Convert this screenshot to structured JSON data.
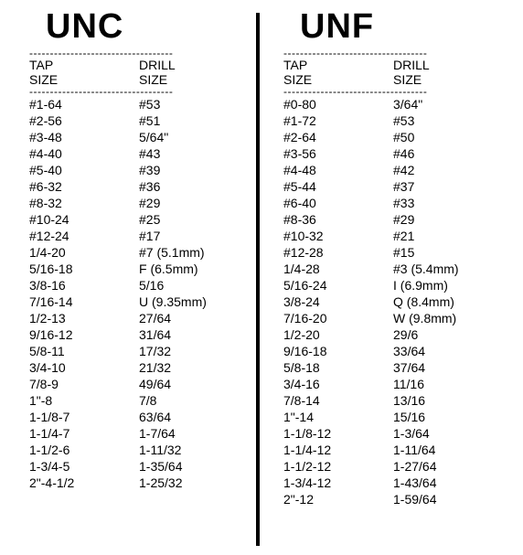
{
  "left": {
    "title": "UNC",
    "dash": "-----------------------------------",
    "header": {
      "tap1": "TAP",
      "tap2": "SIZE",
      "drill1": "DRILL",
      "drill2": "SIZE"
    },
    "rows": [
      {
        "tap": "#1-64",
        "drill": "#53"
      },
      {
        "tap": "#2-56",
        "drill": "#51"
      },
      {
        "tap": "#3-48",
        "drill": "5/64\""
      },
      {
        "tap": "#4-40",
        "drill": "#43"
      },
      {
        "tap": "#5-40",
        "drill": "#39"
      },
      {
        "tap": "#6-32",
        "drill": "#36"
      },
      {
        "tap": "#8-32",
        "drill": "#29"
      },
      {
        "tap": "#10-24",
        "drill": "#25"
      },
      {
        "tap": "#12-24",
        "drill": "#17"
      },
      {
        "tap": "1/4-20",
        "drill": "#7  (5.1mm)"
      },
      {
        "tap": "5/16-18",
        "drill": "F   (6.5mm)"
      },
      {
        "tap": "3/8-16",
        "drill": "5/16"
      },
      {
        "tap": "7/16-14",
        "drill": "U   (9.35mm)"
      },
      {
        "tap": "1/2-13",
        "drill": "27/64"
      },
      {
        "tap": "9/16-12",
        "drill": "31/64"
      },
      {
        "tap": "5/8-11",
        "drill": "17/32"
      },
      {
        "tap": "3/4-10",
        "drill": "21/32"
      },
      {
        "tap": "7/8-9",
        "drill": "49/64"
      },
      {
        "tap": "1\"-8",
        "drill": "7/8"
      },
      {
        "tap": "1-1/8-7",
        "drill": "63/64"
      },
      {
        "tap": "1-1/4-7",
        "drill": "1-7/64"
      },
      {
        "tap": "1-1/2-6",
        "drill": "1-11/32"
      },
      {
        "tap": "1-3/4-5",
        "drill": "1-35/64"
      },
      {
        "tap": "2\"-4-1/2",
        "drill": "1-25/32"
      }
    ]
  },
  "right": {
    "title": "UNF",
    "dash": "-----------------------------------",
    "header": {
      "tap1": "TAP",
      "tap2": "SIZE",
      "drill1": "DRILL",
      "drill2": "SIZE"
    },
    "rows": [
      {
        "tap": "#0-80",
        "drill": "3/64\""
      },
      {
        "tap": "#1-72",
        "drill": "#53"
      },
      {
        "tap": "#2-64",
        "drill": "#50"
      },
      {
        "tap": "#3-56",
        "drill": "#46"
      },
      {
        "tap": "#4-48",
        "drill": "#42"
      },
      {
        "tap": "#5-44",
        "drill": "#37"
      },
      {
        "tap": "#6-40",
        "drill": "#33"
      },
      {
        "tap": "#8-36",
        "drill": "#29"
      },
      {
        "tap": "#10-32",
        "drill": "#21"
      },
      {
        "tap": "#12-28",
        "drill": "#15"
      },
      {
        "tap": "1/4-28",
        "drill": "#3 (5.4mm)"
      },
      {
        "tap": "5/16-24",
        "drill": "I   (6.9mm)"
      },
      {
        "tap": "3/8-24",
        "drill": "Q  (8.4mm)"
      },
      {
        "tap": "7/16-20",
        "drill": "W  (9.8mm)"
      },
      {
        "tap": "1/2-20",
        "drill": "29/6"
      },
      {
        "tap": "9/16-18",
        "drill": "33/64"
      },
      {
        "tap": "5/8-18",
        "drill": "37/64"
      },
      {
        "tap": "3/4-16",
        "drill": "11/16"
      },
      {
        "tap": "7/8-14",
        "drill": "13/16"
      },
      {
        "tap": "1\"-14",
        "drill": "15/16"
      },
      {
        "tap": "1-1/8-12",
        "drill": "1-3/64"
      },
      {
        "tap": "1-1/4-12",
        "drill": "1-11/64"
      },
      {
        "tap": "1-1/2-12",
        "drill": "1-27/64"
      },
      {
        "tap": "1-3/4-12",
        "drill": "1-43/64"
      },
      {
        "tap": "2\"-12",
        "drill": "1-59/64"
      }
    ]
  },
  "style": {
    "background_color": "#ffffff",
    "text_color": "#000000",
    "divider_color": "#000000",
    "heading_fontsize_pt": 28,
    "heading_fontweight": 900,
    "body_fontsize_pt": 10,
    "font_family": "Arial"
  }
}
